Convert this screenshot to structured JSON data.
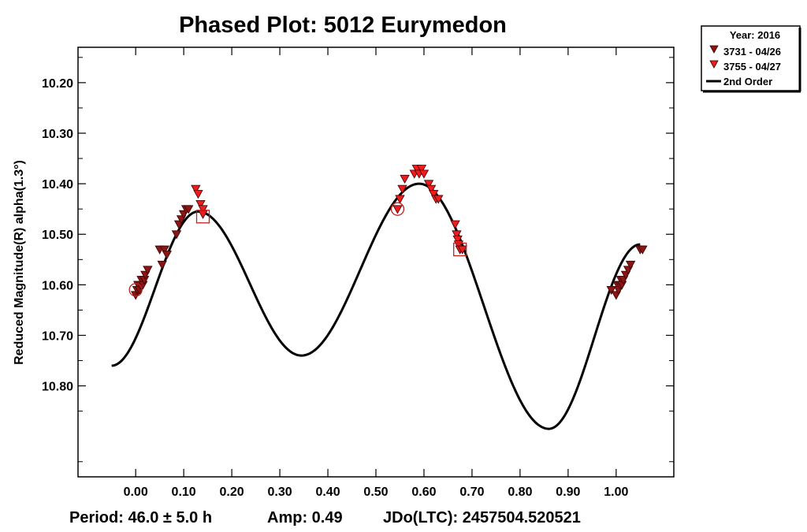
{
  "chart_data": {
    "type": "scatter",
    "title": "Phased Plot: 5012 Eurymedon",
    "xlabel": "",
    "ylabel": "Reduced Magnitude(R) alpha(1.3°)",
    "xlim": [
      -0.12,
      1.12
    ],
    "ylim": [
      10.13,
      10.98
    ],
    "y_inverted": true,
    "x_ticks": [
      "0.00",
      "0.10",
      "0.20",
      "0.30",
      "0.40",
      "0.50",
      "0.60",
      "0.70",
      "0.80",
      "0.90",
      "1.00"
    ],
    "x_tick_values": [
      0.0,
      0.1,
      0.2,
      0.3,
      0.4,
      0.5,
      0.6,
      0.7,
      0.8,
      0.9,
      1.0
    ],
    "y_ticks": [
      "10.20",
      "10.30",
      "10.40",
      "10.50",
      "10.60",
      "10.70",
      "10.80"
    ],
    "y_tick_values": [
      10.2,
      10.3,
      10.4,
      10.5,
      10.6,
      10.7,
      10.8
    ],
    "grid": false,
    "legend": {
      "placement": "outside-top-right",
      "header": "Year: 2016",
      "entries": [
        {
          "label": "3731 - 04/26",
          "marker": "down-triangle",
          "color": "#8b1414"
        },
        {
          "label": "3755 - 04/27",
          "marker": "down-triangle",
          "color": "#ee1c1c"
        },
        {
          "label": "2nd Order",
          "marker": "line",
          "color": "#000000"
        }
      ]
    },
    "series": [
      {
        "name": "3731 - 04/26",
        "color": "#8b1414",
        "x": [
          0.0,
          0.003,
          0.005,
          0.008,
          0.01,
          0.012,
          0.015,
          0.018,
          0.02,
          0.025,
          0.05,
          0.055,
          0.06,
          0.065,
          0.085,
          0.09,
          0.095,
          0.1,
          0.105,
          0.11,
          0.99,
          1.0,
          1.003,
          1.005,
          1.008,
          1.01,
          1.012,
          1.015,
          1.02,
          1.025,
          1.03,
          1.05,
          1.055
        ],
        "y": [
          10.62,
          10.61,
          10.6,
          10.61,
          10.6,
          10.59,
          10.6,
          10.59,
          10.58,
          10.57,
          10.53,
          10.56,
          10.53,
          10.54,
          10.5,
          10.48,
          10.47,
          10.46,
          10.45,
          10.45,
          10.61,
          10.62,
          10.6,
          10.61,
          10.6,
          10.59,
          10.6,
          10.59,
          10.58,
          10.57,
          10.56,
          10.53,
          10.53
        ]
      },
      {
        "name": "3755 - 04/27",
        "color": "#ee1c1c",
        "x": [
          0.125,
          0.13,
          0.135,
          0.14,
          0.14,
          0.545,
          0.55,
          0.555,
          0.56,
          0.58,
          0.585,
          0.59,
          0.595,
          0.6,
          0.61,
          0.615,
          0.62,
          0.625,
          0.63,
          0.665,
          0.668,
          0.67,
          0.672,
          0.675,
          0.68
        ],
        "y": [
          10.41,
          10.42,
          10.44,
          10.45,
          10.46,
          10.45,
          10.43,
          10.41,
          10.39,
          10.38,
          10.37,
          10.38,
          10.37,
          10.38,
          10.4,
          10.41,
          10.42,
          10.43,
          10.43,
          10.48,
          10.5,
          10.51,
          10.52,
          10.53,
          10.53
        ]
      }
    ],
    "fit": {
      "name": "2nd Order",
      "x_range": [
        -0.05,
        1.05
      ],
      "points": [
        {
          "x": -0.05,
          "y": 10.76
        },
        {
          "x": 0.13,
          "y": 10.455
        },
        {
          "x": 0.345,
          "y": 10.74
        },
        {
          "x": 0.59,
          "y": 10.4
        },
        {
          "x": 0.86,
          "y": 10.885
        },
        {
          "x": 1.05,
          "y": 10.52
        }
      ]
    },
    "highlighted_points": [
      {
        "x": 0.0,
        "y": 10.61,
        "marker": "circle"
      },
      {
        "x": 0.545,
        "y": 10.45,
        "marker": "circle"
      },
      {
        "x": 0.14,
        "y": 10.465,
        "marker": "square"
      },
      {
        "x": 0.675,
        "y": 10.53,
        "marker": "square"
      }
    ],
    "footer": {
      "period": "Period: 46.0 ± 5.0 h",
      "amp": "Amp: 0.49",
      "jdo": "JDo(LTC): 2457504.520521"
    }
  }
}
